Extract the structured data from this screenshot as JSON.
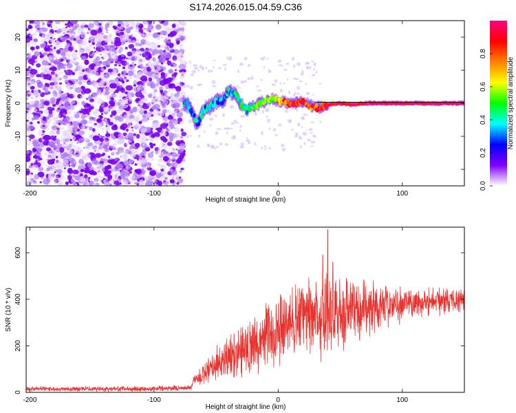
{
  "title": "S174.2026.015.04.59.C36",
  "chart_data": [
    {
      "type": "heatmap",
      "xlabel": "Height of straight line (km)",
      "ylabel": "Frequency (Hz)",
      "xlim": [
        -203,
        150
      ],
      "ylim": [
        -25,
        25
      ],
      "xticks": [
        -200,
        -100,
        0,
        100
      ],
      "yticks": [
        -20,
        -10,
        0,
        10,
        20
      ],
      "colorbar": {
        "label": "Normalized spectral amplitude",
        "range": [
          0,
          1
        ],
        "ticks": [
          "0.0",
          "0.2",
          "0.4",
          "0.6",
          "0.8"
        ],
        "colors": [
          "#ffffff",
          "#8000ff",
          "#0000ff",
          "#00ffff",
          "#00ff00",
          "#ffff00",
          "#ff8000",
          "#ff0000",
          "#ff0080"
        ]
      },
      "noise_region": {
        "x_range": [
          -203,
          -76
        ],
        "f_range": [
          -25,
          25
        ],
        "amplitude": [
          0.0,
          0.15
        ]
      },
      "signal_track": {
        "description_points": [
          {
            "x": -74,
            "f": 0.0,
            "a": 0.3
          },
          {
            "x": -70,
            "f": -2.5,
            "a": 0.35
          },
          {
            "x": -65,
            "f": -6.5,
            "a": 0.35
          },
          {
            "x": -60,
            "f": -2.0,
            "a": 0.35
          },
          {
            "x": -55,
            "f": -1.0,
            "a": 0.35
          },
          {
            "x": -50,
            "f": 0.5,
            "a": 0.35
          },
          {
            "x": -45,
            "f": 0.5,
            "a": 0.3
          },
          {
            "x": -40,
            "f": 3.5,
            "a": 0.35
          },
          {
            "x": -35,
            "f": 3.0,
            "a": 0.4
          },
          {
            "x": -30,
            "f": 0.0,
            "a": 0.4
          },
          {
            "x": -25,
            "f": -2.0,
            "a": 0.4
          },
          {
            "x": -20,
            "f": -1.0,
            "a": 0.45
          },
          {
            "x": -15,
            "f": 0.0,
            "a": 0.55
          },
          {
            "x": -10,
            "f": 0.5,
            "a": 0.55
          },
          {
            "x": -5,
            "f": 1.5,
            "a": 0.6
          },
          {
            "x": 0,
            "f": 0.5,
            "a": 0.65
          },
          {
            "x": 10,
            "f": 0.0,
            "a": 0.85
          },
          {
            "x": 20,
            "f": 0.5,
            "a": 0.8
          },
          {
            "x": 30,
            "f": -1.5,
            "a": 0.8
          },
          {
            "x": 40,
            "f": -0.5,
            "a": 0.9
          },
          {
            "x": 50,
            "f": 0.0,
            "a": 0.9
          },
          {
            "x": 60,
            "f": -0.5,
            "a": 0.9
          },
          {
            "x": 70,
            "f": 0.0,
            "a": 0.9
          },
          {
            "x": 80,
            "f": 0.0,
            "a": 0.95
          },
          {
            "x": 100,
            "f": 0.0,
            "a": 0.95
          },
          {
            "x": 120,
            "f": 0.0,
            "a": 0.98
          },
          {
            "x": 150,
            "f": 0.0,
            "a": 1.0
          }
        ]
      }
    },
    {
      "type": "line",
      "xlabel": "Height of straight line (km)",
      "ylabel": "SNR (10 * v/v)",
      "xlim": [
        -203,
        150
      ],
      "ylim": [
        0,
        710
      ],
      "xticks": [
        -200,
        -100,
        0,
        100
      ],
      "yticks": [
        0,
        200,
        400,
        600
      ],
      "color": "#e8332f",
      "series": [
        {
          "trend": [
            {
              "x": -203,
              "y": 15
            },
            {
              "x": -100,
              "y": 15
            },
            {
              "x": -70,
              "y": 20
            },
            {
              "x": -68,
              "y": 55
            },
            {
              "x": -60,
              "y": 70
            },
            {
              "x": -50,
              "y": 120
            },
            {
              "x": -40,
              "y": 150
            },
            {
              "x": -30,
              "y": 190
            },
            {
              "x": -20,
              "y": 200
            },
            {
              "x": -10,
              "y": 240
            },
            {
              "x": 0,
              "y": 260
            },
            {
              "x": 10,
              "y": 300
            },
            {
              "x": 20,
              "y": 320
            },
            {
              "x": 30,
              "y": 340
            },
            {
              "x": 40,
              "y": 340
            },
            {
              "x": 50,
              "y": 340
            },
            {
              "x": 60,
              "y": 350
            },
            {
              "x": 80,
              "y": 370
            },
            {
              "x": 100,
              "y": 380
            },
            {
              "x": 120,
              "y": 390
            },
            {
              "x": 150,
              "y": 400
            }
          ],
          "spread": [
            {
              "x": -203,
              "s": 10
            },
            {
              "x": -70,
              "s": 12
            },
            {
              "x": -60,
              "s": 50
            },
            {
              "x": -30,
              "s": 110
            },
            {
              "x": 0,
              "s": 140
            },
            {
              "x": 20,
              "s": 160
            },
            {
              "x": 40,
              "s": 200
            },
            {
              "x": 60,
              "s": 140
            },
            {
              "x": 100,
              "s": 70
            },
            {
              "x": 150,
              "s": 50
            }
          ],
          "peaks": [
            {
              "x": 36,
              "y": 590
            },
            {
              "x": 40,
              "y": 700
            },
            {
              "x": 44,
              "y": 560
            },
            {
              "x": 55,
              "y": 490
            },
            {
              "x": 2,
              "y": 420
            }
          ]
        }
      ]
    }
  ]
}
